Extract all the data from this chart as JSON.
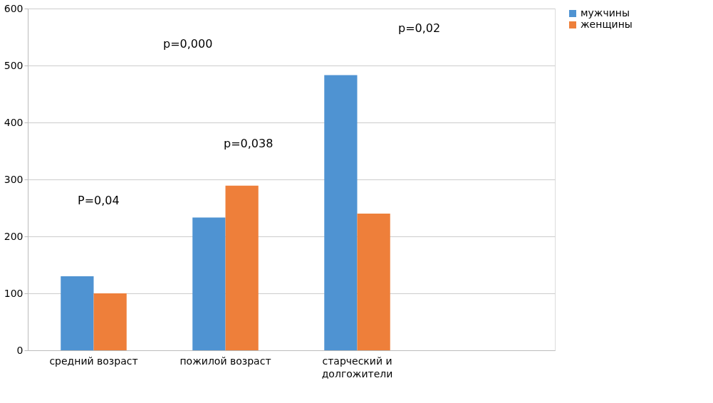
{
  "chart_data": {
    "type": "bar",
    "categories": [
      "средний возраст",
      "пожилой возраст",
      "старческий и\nдолгожители",
      null
    ],
    "series": [
      {
        "name": "мужчины",
        "color": "#4f93d2",
        "values": [
          130,
          233,
          483,
          null
        ]
      },
      {
        "name": "женщины",
        "color": "#ee7f3a",
        "values": [
          100,
          289,
          240,
          null
        ]
      }
    ],
    "ylim": [
      0,
      600
    ],
    "yticks": [
      0,
      100,
      200,
      300,
      400,
      500,
      600
    ],
    "grid": "y",
    "legend": "right",
    "annotations": [
      "P=0,04",
      "p=0,000",
      "p=0,038",
      "p=0,02"
    ]
  }
}
